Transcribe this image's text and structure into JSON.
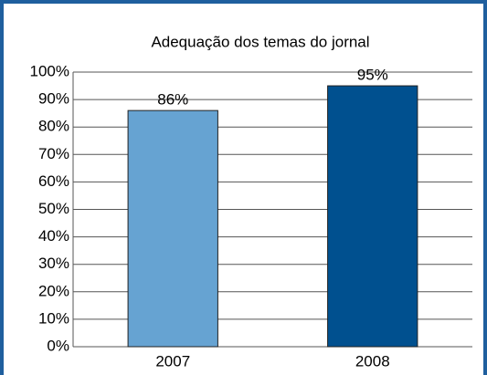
{
  "chart_data": {
    "type": "bar",
    "title": "Adequação dos temas do jornal",
    "categories": [
      "2007",
      "2008"
    ],
    "values": [
      86,
      95
    ],
    "value_labels": [
      "86%",
      "95%"
    ],
    "colors": [
      "#66a3d2",
      "#00508f"
    ],
    "ylim": [
      0,
      100
    ],
    "yticks": [
      {
        "value": 0,
        "label": "0%"
      },
      {
        "value": 10,
        "label": "10%"
      },
      {
        "value": 20,
        "label": "20%"
      },
      {
        "value": 30,
        "label": "30%"
      },
      {
        "value": 40,
        "label": "40%"
      },
      {
        "value": 50,
        "label": "50%"
      },
      {
        "value": 60,
        "label": "60%"
      },
      {
        "value": 70,
        "label": "70%"
      },
      {
        "value": 80,
        "label": "80%"
      },
      {
        "value": 90,
        "label": "90%"
      },
      {
        "value": 100,
        "label": "100%"
      }
    ],
    "grid": true
  }
}
